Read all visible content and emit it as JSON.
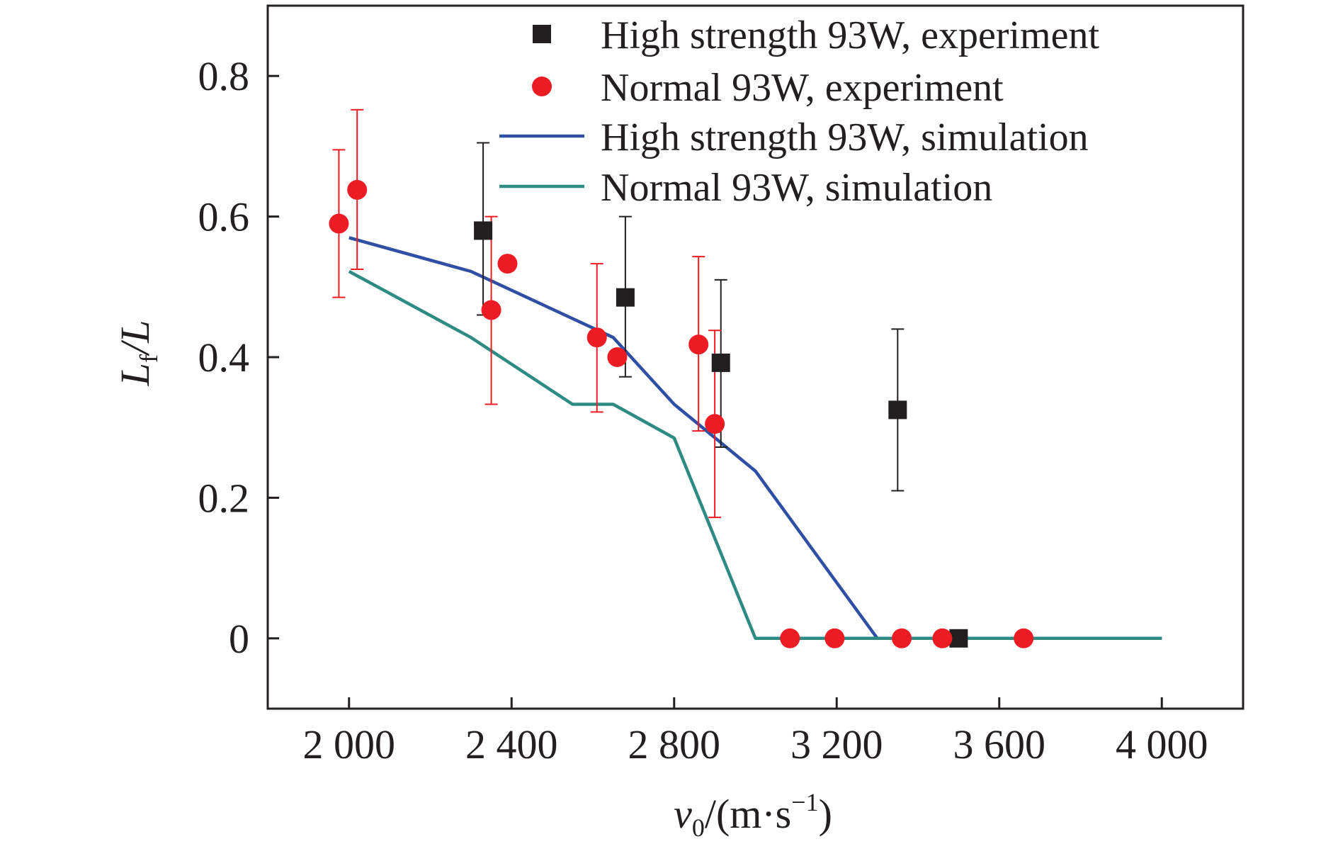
{
  "chart_data": {
    "type": "scatter",
    "title": "",
    "xlabel": {
      "main": "v",
      "sub": "0",
      "rest": "/(m·s",
      "sup": "−1",
      "close": ")"
    },
    "ylabel": {
      "main": "L",
      "sub": "f",
      "rest": "/L"
    },
    "xlim": [
      1800,
      4200
    ],
    "ylim": [
      -0.1,
      0.9
    ],
    "xticks": [
      2000,
      2400,
      2800,
      3200,
      3600,
      4000
    ],
    "xtick_labels": [
      "2 000",
      "2 400",
      "2 800",
      "3 200",
      "3 600",
      "4 000"
    ],
    "yticks": [
      0,
      0.2,
      0.4,
      0.6,
      0.8
    ],
    "ytick_labels": [
      "0",
      "0.2",
      "0.4",
      "0.6",
      "0.8"
    ],
    "grid": false,
    "legend_position": "top-right",
    "series": [
      {
        "name": "High strength 93W, experiment",
        "kind": "marker-square",
        "color": "#231f20",
        "points": [
          {
            "x": 2330,
            "y": 0.58,
            "err_lo": 0.46,
            "err_hi": 0.705
          },
          {
            "x": 2680,
            "y": 0.485,
            "err_lo": 0.372,
            "err_hi": 0.6
          },
          {
            "x": 2915,
            "y": 0.392,
            "err_lo": 0.272,
            "err_hi": 0.51
          },
          {
            "x": 3350,
            "y": 0.325,
            "err_lo": 0.21,
            "err_hi": 0.44
          },
          {
            "x": 3500,
            "y": 0.0
          }
        ]
      },
      {
        "name": "Normal 93W, experiment",
        "kind": "marker-circle",
        "color": "#ed1c24",
        "points": [
          {
            "x": 1975,
            "y": 0.59,
            "err_lo": 0.485,
            "err_hi": 0.695
          },
          {
            "x": 2020,
            "y": 0.638,
            "err_lo": 0.525,
            "err_hi": 0.752
          },
          {
            "x": 2350,
            "y": 0.467,
            "err_lo": 0.333,
            "err_hi": 0.6
          },
          {
            "x": 2390,
            "y": 0.533
          },
          {
            "x": 2610,
            "y": 0.428,
            "err_lo": 0.322,
            "err_hi": 0.533
          },
          {
            "x": 2660,
            "y": 0.4
          },
          {
            "x": 2860,
            "y": 0.418,
            "err_lo": 0.295,
            "err_hi": 0.543
          },
          {
            "x": 2900,
            "y": 0.305,
            "err_lo": 0.172,
            "err_hi": 0.438
          },
          {
            "x": 3085,
            "y": 0.0
          },
          {
            "x": 3195,
            "y": 0.0
          },
          {
            "x": 3360,
            "y": 0.0
          },
          {
            "x": 3460,
            "y": 0.0
          },
          {
            "x": 3660,
            "y": 0.0
          }
        ]
      },
      {
        "name": "High strength 93W, simulation",
        "kind": "line",
        "color": "#2e4fa3",
        "points": [
          {
            "x": 2000,
            "y": 0.57
          },
          {
            "x": 2300,
            "y": 0.522
          },
          {
            "x": 2650,
            "y": 0.428
          },
          {
            "x": 2800,
            "y": 0.333
          },
          {
            "x": 3000,
            "y": 0.238
          },
          {
            "x": 3300,
            "y": 0.0
          },
          {
            "x": 3600,
            "y": 0.0
          },
          {
            "x": 4000,
            "y": 0.0
          }
        ]
      },
      {
        "name": "Normal 93W, simulation",
        "kind": "line",
        "color": "#2e8b84",
        "points": [
          {
            "x": 2000,
            "y": 0.522
          },
          {
            "x": 2300,
            "y": 0.428
          },
          {
            "x": 2550,
            "y": 0.333
          },
          {
            "x": 2650,
            "y": 0.333
          },
          {
            "x": 2800,
            "y": 0.285
          },
          {
            "x": 3000,
            "y": 0.0
          },
          {
            "x": 3600,
            "y": 0.0
          },
          {
            "x": 4000,
            "y": 0.0
          }
        ]
      }
    ]
  }
}
